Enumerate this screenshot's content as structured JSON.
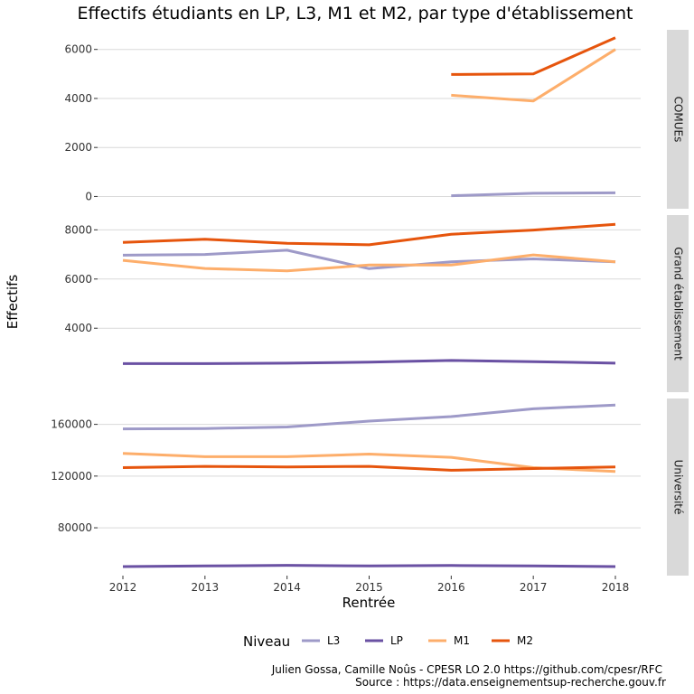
{
  "chart_data": {
    "type": "line",
    "title": "Effectifs étudiants en LP, L3, M1 et M2, par type d'établissement",
    "xlabel": "Rentrée",
    "ylabel": "Effectifs",
    "x": [
      2012,
      2013,
      2014,
      2015,
      2016,
      2017,
      2018
    ],
    "xticks": [
      "2012",
      "2013",
      "2014",
      "2015",
      "2016",
      "2017",
      "2018"
    ],
    "legend": {
      "title": "Niveau",
      "position": "bottom",
      "entries": [
        {
          "name": "L3",
          "color": "#9e9ac8"
        },
        {
          "name": "LP",
          "color": "#6a51a3"
        },
        {
          "name": "M1",
          "color": "#fdae6b"
        },
        {
          "name": "M2",
          "color": "#e6550d"
        }
      ]
    },
    "grid": true,
    "facets": [
      {
        "label": "COMUEs",
        "ylim": [
          -500,
          6800
        ],
        "ticks": [
          0,
          2000,
          4000,
          6000
        ],
        "tick_labels": [
          "0",
          "2000",
          "4000",
          "6000"
        ],
        "series": [
          {
            "name": "L3",
            "values": [
              null,
              null,
              null,
              null,
              30,
              130,
              150
            ]
          },
          {
            "name": "M1",
            "values": [
              null,
              null,
              null,
              null,
              4130,
              3900,
              6000
            ]
          },
          {
            "name": "M2",
            "values": [
              null,
              null,
              null,
              null,
              4980,
              5000,
              6480
            ]
          }
        ]
      },
      {
        "label": "Grand établissement",
        "ylim": [
          1400,
          8600
        ],
        "ticks": [
          4000,
          6000,
          8000
        ],
        "tick_labels": [
          "4000",
          "6000",
          "8000"
        ],
        "series": [
          {
            "name": "L3",
            "values": [
              6970,
              7000,
              7170,
              6420,
              6700,
              6820,
              6700
            ]
          },
          {
            "name": "LP",
            "values": [
              2560,
              2560,
              2580,
              2620,
              2690,
              2640,
              2580
            ]
          },
          {
            "name": "M1",
            "values": [
              6760,
              6430,
              6330,
              6570,
              6570,
              6980,
              6700
            ]
          },
          {
            "name": "M2",
            "values": [
              7490,
              7620,
              7450,
              7390,
              7820,
              7990,
              8220
            ]
          }
        ]
      },
      {
        "label": "Université",
        "ylim": [
          43000,
          180000
        ],
        "ticks": [
          80000,
          120000,
          160000
        ],
        "tick_labels": [
          "80000",
          "120000",
          "160000"
        ],
        "series": [
          {
            "name": "L3",
            "values": [
              156500,
              156800,
              158000,
              162500,
              166000,
              172000,
              175000
            ]
          },
          {
            "name": "LP",
            "values": [
              50000,
              50500,
              51000,
              50500,
              50800,
              50500,
              50000
            ]
          },
          {
            "name": "M1",
            "values": [
              137500,
              135000,
              135000,
              137000,
              134500,
              126500,
              123500
            ]
          },
          {
            "name": "M2",
            "values": [
              126500,
              127500,
              127000,
              127500,
              124500,
              125800,
              127000
            ]
          }
        ]
      }
    ]
  },
  "caption": {
    "line1": "Julien Gossa, Camille Noûs - CPESR LO 2.0 https://github.com/cpesr/RFC",
    "line2": "Source : https://data.enseignementsup-recherche.gouv.fr"
  }
}
